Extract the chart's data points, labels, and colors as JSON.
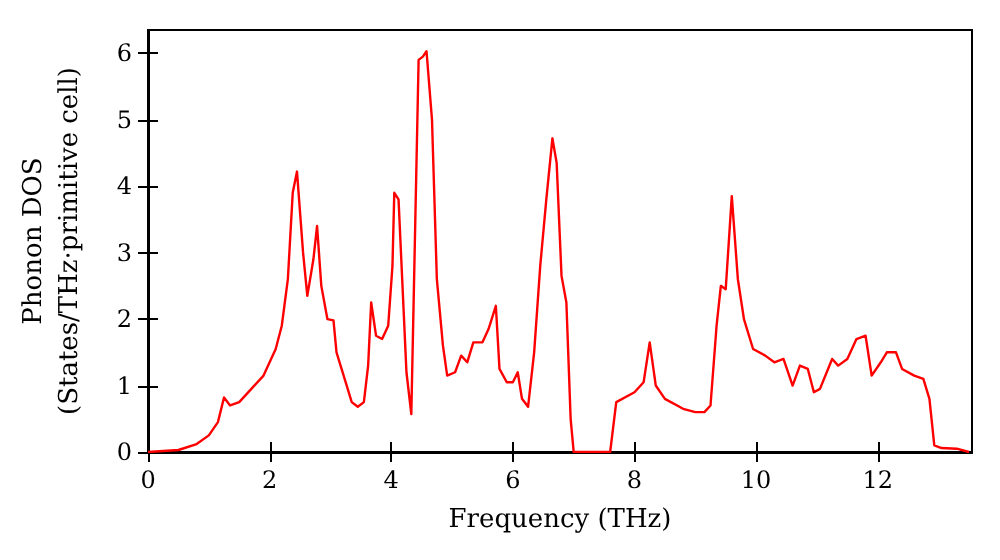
{
  "chart_data": {
    "type": "line",
    "xlabel": "Frequency (THz)",
    "ylabel": "Phonon DOS\n(States/THz·primitive cell)",
    "xlim": [
      0,
      13.55
    ],
    "ylim": [
      0,
      6.35
    ],
    "xticks": [
      0,
      2,
      4,
      6,
      8,
      10,
      12
    ],
    "yticks": [
      0,
      1,
      2,
      3,
      4,
      5,
      6
    ],
    "grid": false,
    "marker": "none",
    "line_style": "solid",
    "series": [
      {
        "color": "#ff0000",
        "x": [
          0,
          0.5,
          0.8,
          1.0,
          1.15,
          1.25,
          1.35,
          1.5,
          1.7,
          1.9,
          2.1,
          2.2,
          2.3,
          2.38,
          2.45,
          2.55,
          2.62,
          2.72,
          2.78,
          2.85,
          2.95,
          3.05,
          3.1,
          3.25,
          3.35,
          3.45,
          3.55,
          3.62,
          3.67,
          3.75,
          3.85,
          3.95,
          4.02,
          4.05,
          4.12,
          4.25,
          4.33,
          4.45,
          4.52,
          4.58,
          4.67,
          4.75,
          4.85,
          4.92,
          5.05,
          5.15,
          5.25,
          5.35,
          5.5,
          5.6,
          5.72,
          5.78,
          5.9,
          6.0,
          6.08,
          6.15,
          6.25,
          6.35,
          6.45,
          6.55,
          6.65,
          6.72,
          6.8,
          6.88,
          6.95,
          7.0,
          7.6,
          7.7,
          8.0,
          8.15,
          8.25,
          8.35,
          8.5,
          8.8,
          9.0,
          9.15,
          9.25,
          9.35,
          9.42,
          9.5,
          9.6,
          9.7,
          9.8,
          9.95,
          10.15,
          10.3,
          10.45,
          10.6,
          10.72,
          10.85,
          10.95,
          11.05,
          11.25,
          11.35,
          11.5,
          11.65,
          11.8,
          11.9,
          12.05,
          12.15,
          12.3,
          12.4,
          12.6,
          12.75,
          12.85,
          12.93,
          13.05,
          13.3,
          13.5
        ],
        "values": [
          0,
          0.03,
          0.12,
          0.25,
          0.45,
          0.82,
          0.7,
          0.75,
          0.95,
          1.15,
          1.55,
          1.9,
          2.6,
          3.9,
          4.22,
          3.0,
          2.35,
          2.9,
          3.4,
          2.5,
          2.0,
          1.98,
          1.5,
          1.05,
          0.75,
          0.68,
          0.75,
          1.3,
          2.25,
          1.75,
          1.7,
          1.9,
          2.8,
          3.9,
          3.8,
          1.2,
          0.57,
          5.9,
          5.95,
          6.03,
          5.0,
          2.6,
          1.6,
          1.15,
          1.2,
          1.45,
          1.35,
          1.65,
          1.65,
          1.85,
          2.2,
          1.25,
          1.05,
          1.05,
          1.2,
          0.8,
          0.68,
          1.5,
          2.8,
          3.8,
          4.72,
          4.35,
          2.65,
          2.25,
          0.5,
          0,
          0,
          0.75,
          0.9,
          1.05,
          1.65,
          1.0,
          0.8,
          0.65,
          0.6,
          0.6,
          0.7,
          1.9,
          2.5,
          2.45,
          3.85,
          2.6,
          2.0,
          1.55,
          1.45,
          1.35,
          1.4,
          1.0,
          1.3,
          1.25,
          0.9,
          0.95,
          1.4,
          1.3,
          1.4,
          1.7,
          1.75,
          1.15,
          1.35,
          1.5,
          1.5,
          1.25,
          1.15,
          1.1,
          0.8,
          0.1,
          0.06,
          0.05,
          0
        ]
      }
    ]
  }
}
